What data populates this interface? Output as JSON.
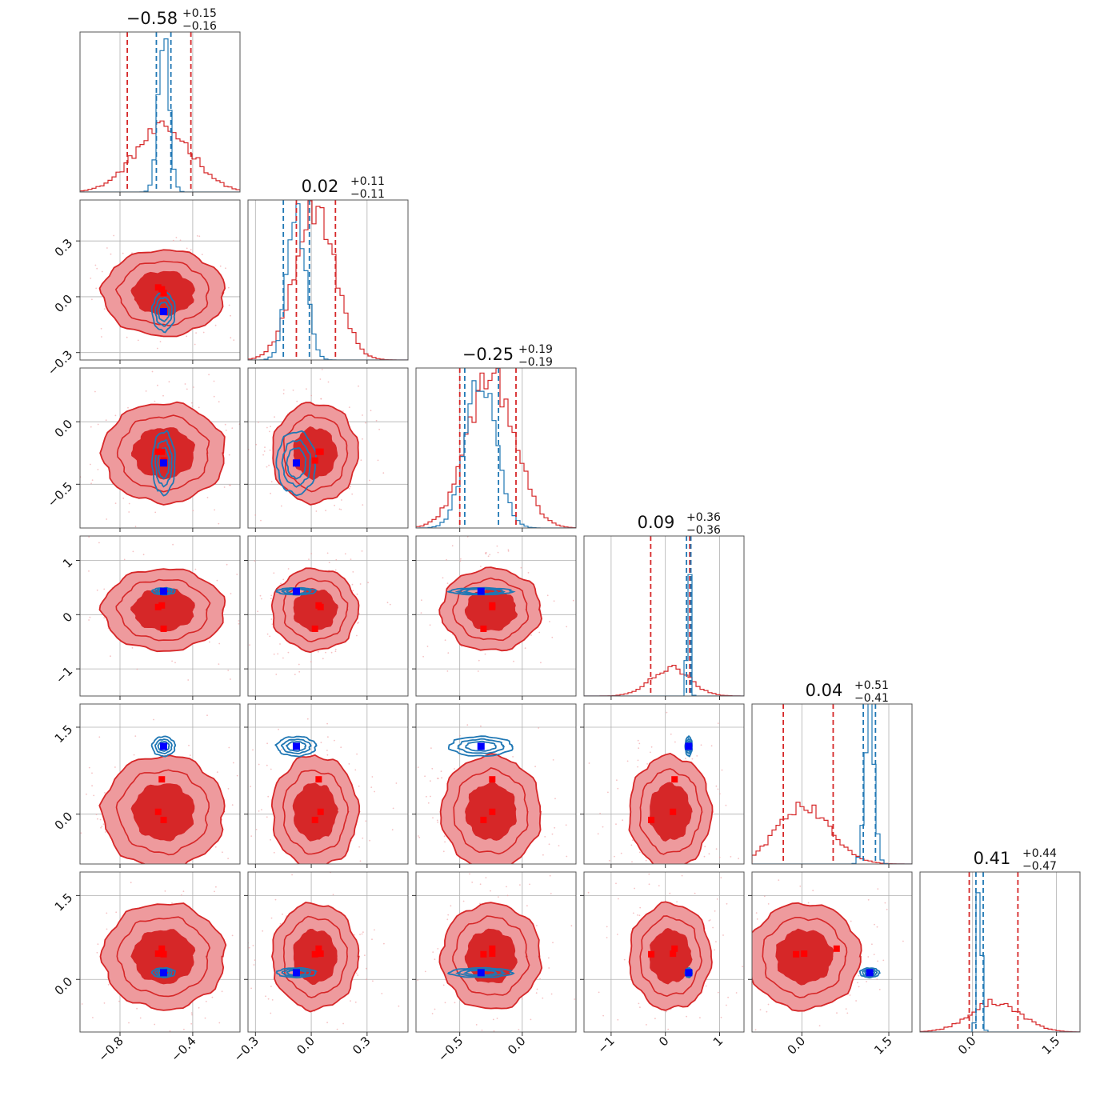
{
  "chart_data": {
    "type": "corner",
    "parameters": 6,
    "colors": {
      "red_line": "#d62728",
      "red_fill_outer": "#ee9a9d",
      "red_fill_inner": "#d62728",
      "blue_line": "#1f77b4",
      "truth_blue": "#0000ff",
      "truth_red": "#ff0000",
      "grid": "#b0b0b0"
    },
    "grid": true,
    "titles": [
      {
        "value": "−0.58",
        "plus": "+0.15",
        "minus": "−0.16"
      },
      {
        "value": "0.02",
        "plus": "+0.11",
        "minus": "−0.11"
      },
      {
        "value": "−0.25",
        "plus": "+0.19",
        "minus": "−0.19"
      },
      {
        "value": "0.09",
        "plus": "+0.36",
        "minus": "−0.36"
      },
      {
        "value": "0.04",
        "plus": "+0.51",
        "minus": "−0.41"
      },
      {
        "value": "0.41",
        "plus": "+0.44",
        "minus": "−0.47"
      }
    ],
    "ranges": [
      [
        -1.02,
        -0.14
      ],
      [
        -0.34,
        0.52
      ],
      [
        -0.85,
        0.43
      ],
      [
        -1.5,
        1.45
      ],
      [
        -0.86,
        1.9
      ],
      [
        -0.94,
        1.92
      ]
    ],
    "ticks": [
      {
        "values": [
          -0.8,
          -0.4
        ],
        "labels": [
          "−0.8",
          "−0.4"
        ]
      },
      {
        "values": [
          -0.3,
          0.0,
          0.3
        ],
        "labels": [
          "−0.3",
          "0.0",
          "0.3"
        ]
      },
      {
        "values": [
          -0.5,
          0.0
        ],
        "labels": [
          "−0.5",
          "0.0"
        ]
      },
      {
        "values": [
          -1,
          0,
          1
        ],
        "labels": [
          "−1",
          "0",
          "1"
        ]
      },
      {
        "values": [
          0.0,
          1.5
        ],
        "labels": [
          "0.0",
          "1.5"
        ]
      },
      {
        "values": [
          0.0,
          1.5
        ],
        "labels": [
          "0.0",
          "1.5"
        ]
      }
    ],
    "red_posterior": {
      "center": [
        -0.56,
        0.02,
        -0.25,
        0.09,
        0.04,
        0.41
      ],
      "sigma": [
        0.16,
        0.11,
        0.19,
        0.36,
        0.46,
        0.45
      ],
      "quantiles": [
        [
          -0.76,
          -0.41
        ],
        [
          -0.08,
          0.13
        ],
        [
          -0.5,
          -0.05
        ],
        [
          -0.27,
          0.45
        ],
        [
          -0.32,
          0.54
        ],
        [
          -0.06,
          0.81
        ]
      ]
    },
    "blue_posterior": {
      "center": [
        -0.56,
        -0.08,
        -0.33,
        0.43,
        1.17,
        0.12
      ],
      "sigma": [
        0.03,
        0.05,
        0.12,
        0.03,
        0.08,
        0.04
      ],
      "quantiles": [
        [
          -0.6,
          -0.52
        ],
        [
          -0.15,
          -0.01
        ],
        [
          -0.46,
          -0.19
        ],
        [
          0.39,
          0.47
        ],
        [
          1.06,
          1.27
        ],
        [
          0.06,
          0.19
        ]
      ]
    },
    "truth_blue": [
      -0.56,
      -0.08,
      -0.33,
      0.43,
      1.17,
      0.12
    ],
    "truth_red": [
      [
        -0.57,
        0.04,
        -0.24,
        0.17,
        0.6,
        0.55
      ],
      [
        -0.56,
        0.02,
        -0.31,
        -0.26,
        -0.1,
        0.45
      ],
      [
        -0.59,
        0.05,
        -0.24,
        0.14,
        0.04,
        0.46
      ]
    ],
    "legend": null
  }
}
